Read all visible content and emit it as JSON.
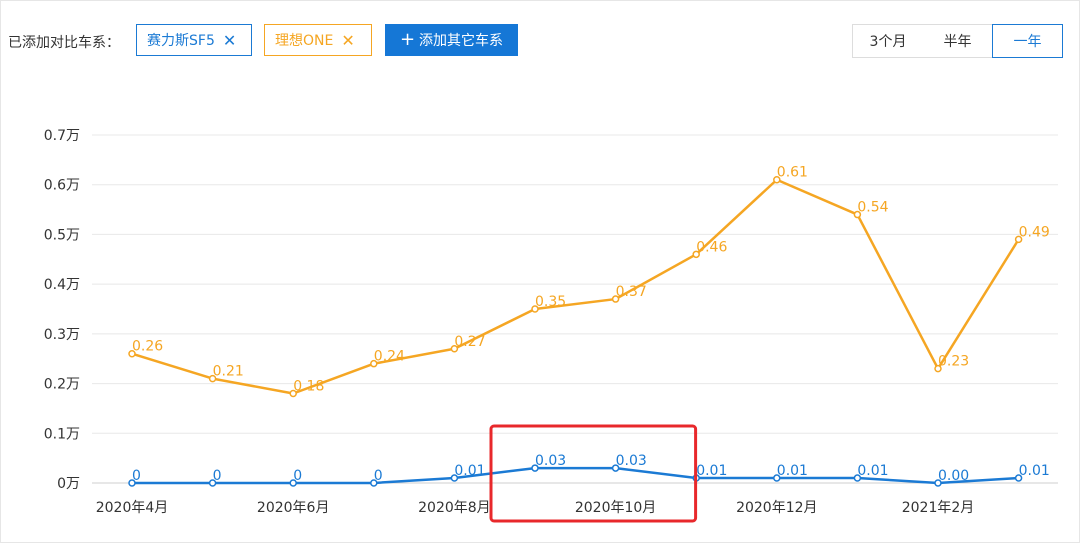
{
  "toolbar": {
    "label": "已添加对比车系：",
    "chips": [
      {
        "label": "赛力斯SF5",
        "close": "✕",
        "color": "#1b7ad4"
      },
      {
        "label": "理想ONE",
        "close": "✕",
        "color": "#f5a623"
      }
    ],
    "add_button": {
      "plus": "+",
      "label": "添加其它车系"
    },
    "ranges": [
      "3个月",
      "半年",
      "一年"
    ],
    "selected_range": "一年"
  },
  "chart_data": {
    "type": "line",
    "title": "",
    "xlabel": "",
    "ylabel": "",
    "unit": "万",
    "ylim": [
      0,
      0.7
    ],
    "yticks": [
      "0.7万",
      "0.6万",
      "0.5万",
      "0.4万",
      "0.3万",
      "0.2万",
      "0.1万",
      "0万"
    ],
    "categories": [
      "2020年4月",
      "2020年5月",
      "2020年6月",
      "2020年7月",
      "2020年8月",
      "2020年9月",
      "2020年10月",
      "2020年11月",
      "2020年12月",
      "2021年1月",
      "2021年2月",
      "2021年3月"
    ],
    "xtick_labels": [
      "2020年4月",
      "2020年6月",
      "2020年8月",
      "2020年10月",
      "2020年12月",
      "2021年2月"
    ],
    "grid": true,
    "series": [
      {
        "name": "理想ONE",
        "color": "#f5a623",
        "values": [
          0.26,
          0.21,
          0.18,
          0.24,
          0.27,
          0.35,
          0.37,
          0.46,
          0.61,
          0.54,
          0.23,
          0.49
        ],
        "labels": [
          "0.26",
          "0.21",
          "0.18",
          "0.24",
          "0.27",
          "0.35",
          "0.37",
          "0.46",
          "0.61",
          "0.54",
          "0.23",
          "0.49"
        ]
      },
      {
        "name": "赛力斯SF5",
        "color": "#1b7ad4",
        "values": [
          0,
          0,
          0,
          0,
          0.01,
          0.03,
          0.03,
          0.01,
          0.01,
          0.01,
          0.0,
          0.01
        ],
        "labels": [
          "0",
          "0",
          "0",
          "0",
          "0.01",
          "0.03",
          "0.03",
          "0.01",
          "0.01",
          "0.01",
          "0.00",
          "0.01"
        ]
      }
    ],
    "highlight": {
      "from": "2020年9月",
      "to": "2020年10月",
      "color": "#e8282b"
    }
  }
}
